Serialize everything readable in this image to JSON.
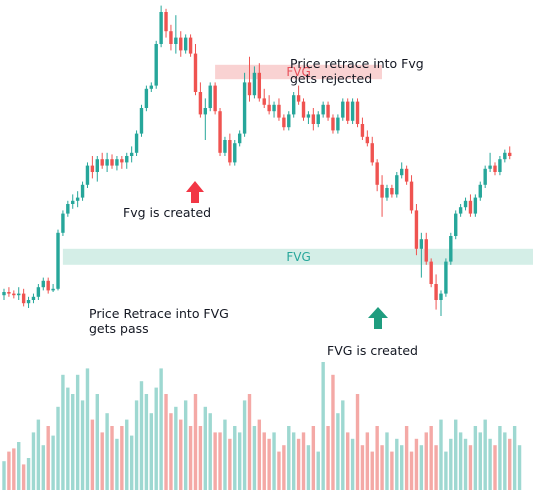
{
  "colors": {
    "up": "#26a69a",
    "down": "#ef5350",
    "up_volume": "#9ed8d1",
    "down_volume": "#f4a9a6",
    "fvg_top_fill": "#f8caca",
    "fvg_top_text": "#e8505b",
    "fvg_bottom_fill": "#cdebe3",
    "fvg_bottom_text": "#26a69a",
    "arrow_red": "#f23645",
    "arrow_green": "#1f9d7f",
    "text": "#131722"
  },
  "annotations": {
    "rejected_note_line1": "Price retrace into Fvg",
    "rejected_note_line2": "gets rejected",
    "fvg_created_top": "Fvg is created",
    "pass_note_line1": "Price Retrace into FVG",
    "pass_note_line2": "gets pass",
    "fvg_created_bottom": "FVG is created"
  },
  "chart_data": {
    "type": "candlestick",
    "title": "",
    "xlabel": "",
    "ylabel": "",
    "ylim": [
      0,
      100
    ],
    "grid": false,
    "legend": "none",
    "zones": [
      {
        "label": "FVG",
        "y_low": 79.0,
        "y_high": 83.5,
        "x_start": 43,
        "x_end": 77,
        "color": "red"
      },
      {
        "label": "FVG",
        "y_low": 21.0,
        "y_high": 26.0,
        "x_start": 12,
        "x_end": 108,
        "color": "green"
      }
    ],
    "candles": [
      {
        "o": 11.5,
        "h": 13.5,
        "l": 10,
        "c": 12.5
      },
      {
        "o": 12.5,
        "h": 14,
        "l": 11,
        "c": 12
      },
      {
        "o": 12,
        "h": 13,
        "l": 10.5,
        "c": 11.5
      },
      {
        "o": 11.5,
        "h": 14,
        "l": 10,
        "c": 12
      },
      {
        "o": 12,
        "h": 13.5,
        "l": 8,
        "c": 9
      },
      {
        "o": 9,
        "h": 11,
        "l": 7.5,
        "c": 10
      },
      {
        "o": 10,
        "h": 12,
        "l": 9,
        "c": 11
      },
      {
        "o": 11,
        "h": 15,
        "l": 10,
        "c": 14
      },
      {
        "o": 14,
        "h": 17,
        "l": 13,
        "c": 16
      },
      {
        "o": 16,
        "h": 17,
        "l": 12,
        "c": 13
      },
      {
        "o": 13,
        "h": 15,
        "l": 12.5,
        "c": 13.5
      },
      {
        "o": 13.5,
        "h": 32,
        "l": 13,
        "c": 31
      },
      {
        "o": 31,
        "h": 38,
        "l": 30,
        "c": 37
      },
      {
        "o": 37,
        "h": 41,
        "l": 36,
        "c": 40
      },
      {
        "o": 40,
        "h": 43,
        "l": 38.5,
        "c": 41
      },
      {
        "o": 41,
        "h": 44,
        "l": 39,
        "c": 42
      },
      {
        "o": 42,
        "h": 47,
        "l": 41,
        "c": 46
      },
      {
        "o": 46,
        "h": 53,
        "l": 45,
        "c": 52
      },
      {
        "o": 52,
        "h": 55,
        "l": 48,
        "c": 50
      },
      {
        "o": 50,
        "h": 55,
        "l": 47,
        "c": 54
      },
      {
        "o": 54,
        "h": 56,
        "l": 51,
        "c": 52
      },
      {
        "o": 52,
        "h": 56,
        "l": 50,
        "c": 54
      },
      {
        "o": 54,
        "h": 55.5,
        "l": 51,
        "c": 52
      },
      {
        "o": 52,
        "h": 55,
        "l": 50.5,
        "c": 54
      },
      {
        "o": 54,
        "h": 55,
        "l": 51,
        "c": 53
      },
      {
        "o": 53,
        "h": 56,
        "l": 51,
        "c": 55
      },
      {
        "o": 55,
        "h": 58,
        "l": 53,
        "c": 56
      },
      {
        "o": 56,
        "h": 63,
        "l": 55,
        "c": 62
      },
      {
        "o": 62,
        "h": 71,
        "l": 61,
        "c": 70
      },
      {
        "o": 70,
        "h": 77,
        "l": 69,
        "c": 76
      },
      {
        "o": 76,
        "h": 78,
        "l": 75,
        "c": 77
      },
      {
        "o": 77,
        "h": 91,
        "l": 76,
        "c": 90
      },
      {
        "o": 90,
        "h": 102,
        "l": 89,
        "c": 100
      },
      {
        "o": 100,
        "h": 101,
        "l": 92,
        "c": 94
      },
      {
        "o": 94,
        "h": 96,
        "l": 88,
        "c": 90
      },
      {
        "o": 90,
        "h": 99,
        "l": 87,
        "c": 92
      },
      {
        "o": 92,
        "h": 94,
        "l": 86,
        "c": 88
      },
      {
        "o": 88,
        "h": 93,
        "l": 87,
        "c": 92
      },
      {
        "o": 92,
        "h": 93,
        "l": 86,
        "c": 87
      },
      {
        "o": 87,
        "h": 90,
        "l": 74,
        "c": 75
      },
      {
        "o": 75,
        "h": 78,
        "l": 67,
        "c": 68
      },
      {
        "o": 68,
        "h": 73,
        "l": 60,
        "c": 70
      },
      {
        "o": 70,
        "h": 78,
        "l": 69,
        "c": 77
      },
      {
        "o": 77,
        "h": 78,
        "l": 68,
        "c": 69
      },
      {
        "o": 69,
        "h": 70,
        "l": 55,
        "c": 56
      },
      {
        "o": 56,
        "h": 61,
        "l": 55,
        "c": 60
      },
      {
        "o": 60,
        "h": 62,
        "l": 52,
        "c": 53
      },
      {
        "o": 53,
        "h": 60,
        "l": 52,
        "c": 59
      },
      {
        "o": 59,
        "h": 63,
        "l": 58,
        "c": 62
      },
      {
        "o": 62,
        "h": 81,
        "l": 61,
        "c": 78
      },
      {
        "o": 78,
        "h": 86,
        "l": 72,
        "c": 74
      },
      {
        "o": 74,
        "h": 83,
        "l": 73,
        "c": 81
      },
      {
        "o": 81,
        "h": 84,
        "l": 72,
        "c": 73
      },
      {
        "o": 73,
        "h": 76,
        "l": 70,
        "c": 71
      },
      {
        "o": 71,
        "h": 74,
        "l": 68,
        "c": 69
      },
      {
        "o": 69,
        "h": 72,
        "l": 67,
        "c": 71
      },
      {
        "o": 71,
        "h": 73,
        "l": 66,
        "c": 67
      },
      {
        "o": 67,
        "h": 68,
        "l": 63,
        "c": 64
      },
      {
        "o": 64,
        "h": 69,
        "l": 63,
        "c": 68
      },
      {
        "o": 68,
        "h": 75,
        "l": 67,
        "c": 74
      },
      {
        "o": 74,
        "h": 77,
        "l": 71,
        "c": 72
      },
      {
        "o": 72,
        "h": 73,
        "l": 66,
        "c": 67
      },
      {
        "o": 67,
        "h": 69,
        "l": 65,
        "c": 68
      },
      {
        "o": 68,
        "h": 70,
        "l": 63,
        "c": 65
      },
      {
        "o": 65,
        "h": 69,
        "l": 64,
        "c": 68
      },
      {
        "o": 68,
        "h": 72,
        "l": 67,
        "c": 71
      },
      {
        "o": 71,
        "h": 72,
        "l": 66,
        "c": 67
      },
      {
        "o": 67,
        "h": 68,
        "l": 62,
        "c": 63
      },
      {
        "o": 63,
        "h": 68,
        "l": 62,
        "c": 67
      },
      {
        "o": 67,
        "h": 73,
        "l": 66,
        "c": 72
      },
      {
        "o": 72,
        "h": 73,
        "l": 65,
        "c": 66
      },
      {
        "o": 66,
        "h": 73,
        "l": 65,
        "c": 72
      },
      {
        "o": 72,
        "h": 73,
        "l": 64,
        "c": 65
      },
      {
        "o": 65,
        "h": 67,
        "l": 60,
        "c": 61
      },
      {
        "o": 61,
        "h": 63,
        "l": 58,
        "c": 59
      },
      {
        "o": 59,
        "h": 61,
        "l": 52,
        "c": 53
      },
      {
        "o": 53,
        "h": 54,
        "l": 44,
        "c": 46
      },
      {
        "o": 46,
        "h": 49,
        "l": 36,
        "c": 42
      },
      {
        "o": 42,
        "h": 46,
        "l": 41,
        "c": 45
      },
      {
        "o": 45,
        "h": 46,
        "l": 42,
        "c": 43
      },
      {
        "o": 43,
        "h": 50,
        "l": 42,
        "c": 49
      },
      {
        "o": 49,
        "h": 53,
        "l": 48,
        "c": 51
      },
      {
        "o": 51,
        "h": 52,
        "l": 46,
        "c": 47
      },
      {
        "o": 47,
        "h": 49,
        "l": 37,
        "c": 38
      },
      {
        "o": 38,
        "h": 40,
        "l": 24,
        "c": 26
      },
      {
        "o": 26,
        "h": 31,
        "l": 17,
        "c": 29
      },
      {
        "o": 29,
        "h": 31,
        "l": 21,
        "c": 22
      },
      {
        "o": 22,
        "h": 23,
        "l": 14,
        "c": 15
      },
      {
        "o": 15,
        "h": 18,
        "l": 7,
        "c": 10
      },
      {
        "o": 10,
        "h": 13,
        "l": 5,
        "c": 12
      },
      {
        "o": 12,
        "h": 23,
        "l": 11,
        "c": 22
      },
      {
        "o": 22,
        "h": 31,
        "l": 21,
        "c": 30
      },
      {
        "o": 30,
        "h": 38,
        "l": 29,
        "c": 37
      },
      {
        "o": 37,
        "h": 40,
        "l": 36,
        "c": 39
      },
      {
        "o": 39,
        "h": 42,
        "l": 38,
        "c": 41
      },
      {
        "o": 41,
        "h": 43,
        "l": 36,
        "c": 37
      },
      {
        "o": 37,
        "h": 43,
        "l": 36,
        "c": 42
      },
      {
        "o": 42,
        "h": 47,
        "l": 41,
        "c": 46
      },
      {
        "o": 46,
        "h": 52,
        "l": 45,
        "c": 51
      },
      {
        "o": 51,
        "h": 56,
        "l": 50,
        "c": 52
      },
      {
        "o": 52,
        "h": 53,
        "l": 49,
        "c": 50
      },
      {
        "o": 50,
        "h": 55,
        "l": 49,
        "c": 54
      },
      {
        "o": 54,
        "h": 57,
        "l": 53,
        "c": 56
      },
      {
        "o": 56,
        "h": 58,
        "l": 54,
        "c": 55
      }
    ],
    "volume": [
      9,
      12,
      13,
      15,
      8,
      10,
      18,
      22,
      14,
      20,
      17,
      26,
      36,
      32,
      30,
      36,
      28,
      38,
      22,
      30,
      18,
      24,
      20,
      16,
      20,
      22,
      17,
      28,
      34,
      30,
      24,
      32,
      38,
      30,
      24,
      26,
      22,
      28,
      20,
      30,
      20,
      26,
      24,
      18,
      18,
      22,
      16,
      20,
      18,
      28,
      30,
      20,
      22,
      18,
      16,
      18,
      12,
      14,
      20,
      18,
      16,
      18,
      14,
      20,
      12,
      40,
      20,
      36,
      24,
      28,
      18,
      16,
      30,
      14,
      18,
      12,
      20,
      14,
      18,
      12,
      16,
      14,
      20,
      12,
      16,
      14,
      18,
      20,
      14,
      22,
      12,
      16,
      22,
      18,
      16,
      14,
      20,
      18,
      22,
      16,
      14,
      20,
      18,
      16,
      20,
      14
    ]
  }
}
